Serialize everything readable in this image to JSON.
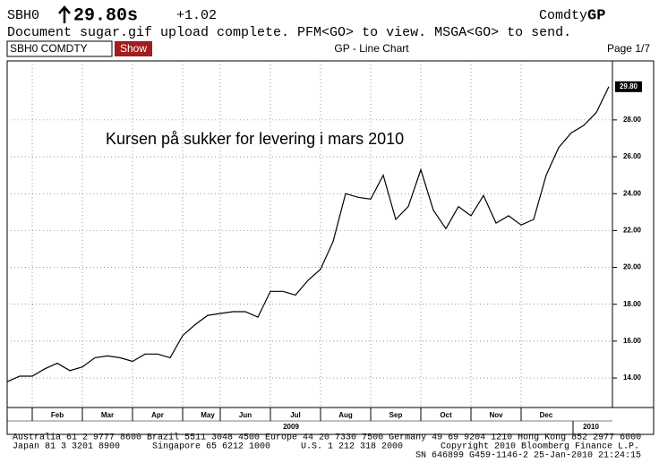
{
  "header": {
    "ticker": "SBH0",
    "price": "29.80s",
    "change": "+1.02",
    "market": "Comdty",
    "function": "GP",
    "message": "Document sugar.gif upload complete. PFM<GO> to view. MSGA<GO> to send.",
    "security_input": "SBH0 COMDTY",
    "button": "Show",
    "screen_title": "GP - Line Chart",
    "page": "Page 1/7"
  },
  "chart_data": {
    "type": "line",
    "annotation": "Kursen på sukker for levering i mars 2010",
    "categories": [
      null,
      null,
      null,
      null,
      "Feb",
      null,
      null,
      null,
      "Mar",
      null,
      null,
      null,
      "Apr",
      null,
      null,
      null,
      "May",
      null,
      null,
      "Jun",
      null,
      null,
      null,
      "Jul",
      null,
      null,
      null,
      "Aug",
      null,
      null,
      null,
      "Sep",
      null,
      null,
      null,
      "Oct",
      null,
      null,
      null,
      "Nov",
      null,
      null,
      null,
      "Dec",
      null,
      null,
      null,
      null,
      null
    ],
    "values": [
      13.8,
      14.1,
      14.1,
      14.5,
      14.8,
      14.4,
      14.6,
      15.1,
      15.2,
      15.1,
      14.9,
      15.3,
      15.3,
      15.1,
      16.3,
      16.9,
      17.4,
      17.5,
      17.6,
      17.6,
      17.3,
      18.7,
      18.7,
      18.5,
      19.3,
      19.9,
      21.4,
      24.0,
      23.8,
      23.7,
      25.0,
      22.6,
      23.3,
      25.3,
      23.1,
      22.1,
      23.3,
      22.8,
      23.9,
      22.4,
      22.8,
      22.3,
      22.6,
      25.0,
      26.5,
      27.3,
      27.7,
      28.4,
      29.8
    ],
    "color": "#000000",
    "year_labels": [
      "2009",
      "2010"
    ],
    "last_value": {
      "value": 29.8,
      "label": "29.80"
    },
    "ylim": [
      12.4,
      31.2
    ],
    "yticks": [
      {
        "value": 14,
        "label": "14.00"
      },
      {
        "value": 16,
        "label": "16.00"
      },
      {
        "value": 18,
        "label": "18.00"
      },
      {
        "value": 20,
        "label": "20.00"
      },
      {
        "value": 22,
        "label": "22.00"
      },
      {
        "value": 24,
        "label": "24.00"
      },
      {
        "value": 26,
        "label": "26.00"
      },
      {
        "value": 28,
        "label": "28.00"
      }
    ],
    "grid": true
  },
  "footer": {
    "line1": "Australia 61 2 9777 8600 Brazil 5511 3048 4500 Europe 44 20 7330 7500 Germany 49 69 9204 1210 Hong Kong 852 2977 6000",
    "japan": "Japan 81 3 3201 8900",
    "singapore": "Singapore 65 6212 1000",
    "us": "U.S. 1 212 318 2000",
    "copyright": "Copyright 2010 Bloomberg Finance L.P.",
    "serial": "SN 646899 G459-1146-2 25-Jan-2010 21:24:15"
  }
}
